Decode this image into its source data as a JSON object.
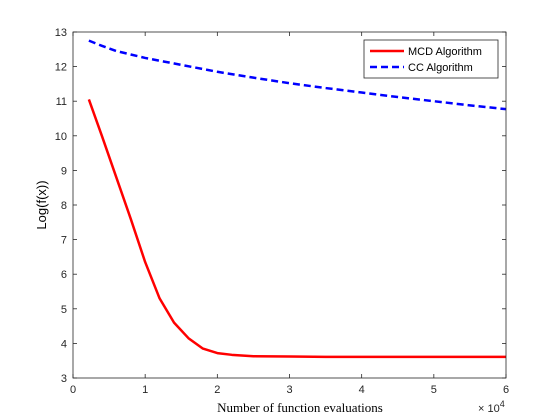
{
  "chart_data": {
    "type": "line",
    "xlabel": "Number of function evaluations",
    "ylabel": "Log(f(x))",
    "x_exponent_base": "× 10",
    "x_exponent_power": "4",
    "xlim": [
      0,
      6
    ],
    "ylim": [
      3,
      13
    ],
    "xticks": [
      0,
      1,
      2,
      3,
      4,
      5,
      6
    ],
    "yticks": [
      3,
      4,
      5,
      6,
      7,
      8,
      9,
      10,
      11,
      12,
      13
    ],
    "grid": false,
    "legend_position": "top-right",
    "series": [
      {
        "name": "MCD Algorithm",
        "color": "#ff0000",
        "style": "solid",
        "x": [
          0.22,
          0.4,
          0.6,
          0.8,
          1.0,
          1.2,
          1.4,
          1.6,
          1.8,
          2.0,
          2.2,
          2.5,
          3.0,
          3.5,
          4.0,
          4.5,
          5.0,
          5.5,
          6.0
        ],
        "y": [
          11.05,
          10.0,
          8.8,
          7.6,
          6.35,
          5.3,
          4.6,
          4.15,
          3.85,
          3.72,
          3.67,
          3.63,
          3.62,
          3.61,
          3.61,
          3.61,
          3.61,
          3.61,
          3.61
        ]
      },
      {
        "name": "CC Algorithm",
        "color": "#0000ff",
        "style": "dashed",
        "x": [
          0.22,
          0.4,
          0.6,
          0.8,
          1.0,
          1.5,
          2.0,
          2.5,
          3.0,
          3.5,
          4.0,
          4.5,
          5.0,
          5.5,
          6.0
        ],
        "y": [
          12.75,
          12.6,
          12.45,
          12.35,
          12.25,
          12.05,
          11.85,
          11.68,
          11.52,
          11.38,
          11.25,
          11.12,
          11.0,
          10.88,
          10.77
        ]
      }
    ]
  }
}
